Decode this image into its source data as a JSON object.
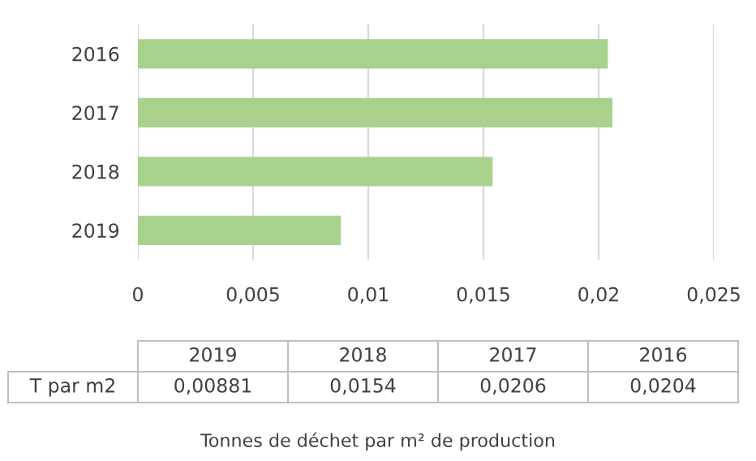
{
  "chart_data": {
    "type": "bar",
    "orientation": "horizontal",
    "categories": [
      "2016",
      "2017",
      "2018",
      "2019"
    ],
    "series": [
      {
        "name": "T par m2",
        "color": "#a9d18e",
        "values": [
          0.0204,
          0.0206,
          0.0154,
          0.00881
        ]
      }
    ],
    "xlim": [
      0,
      0.025
    ],
    "xticks": [
      0,
      {
        "value": 0.005,
        "label": "0,005"
      },
      {
        "value": 0.01,
        "label": "0,01"
      },
      {
        "value": 0.015,
        "label": "0,015"
      },
      {
        "value": 0.02,
        "label": "0,02"
      },
      {
        "value": 0.025,
        "label": "0,025"
      }
    ],
    "grid": "x",
    "annotations": [
      "0,00881",
      "0,0154",
      "0,0206",
      "0,0204",
      "Tonnes de déchet par m² de production"
    ]
  }
}
